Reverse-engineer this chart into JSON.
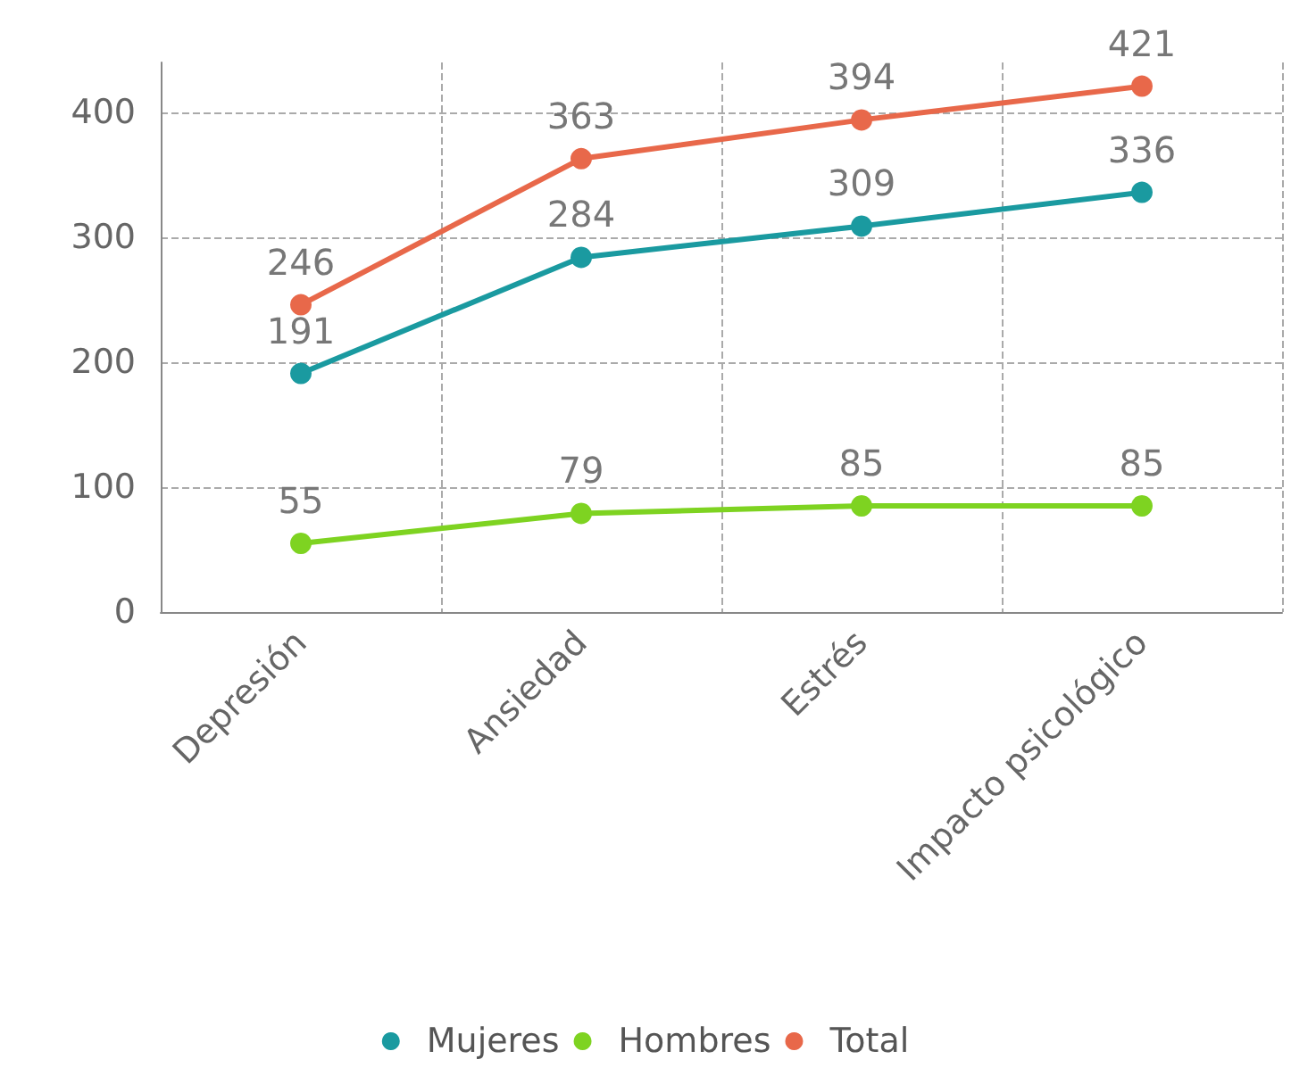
{
  "chart_data": {
    "type": "line",
    "categories": [
      "Depresión",
      "Ansiedad",
      "Estrés",
      "Impacto psicológico"
    ],
    "series": [
      {
        "name": "Mujeres",
        "color": "#1a9aa0",
        "values": [
          191,
          284,
          309,
          336
        ]
      },
      {
        "name": "Hombres",
        "color": "#7ed321",
        "values": [
          55,
          79,
          85,
          85
        ]
      },
      {
        "name": "Total",
        "color": "#e8684a",
        "values": [
          246,
          363,
          394,
          421
        ]
      }
    ],
    "ylim": [
      0,
      440
    ],
    "yticks": [
      0,
      100,
      200,
      300,
      400
    ],
    "grid": true,
    "legend": "bottom",
    "marker": "circle",
    "line_style": "solid",
    "data_labels": true
  }
}
